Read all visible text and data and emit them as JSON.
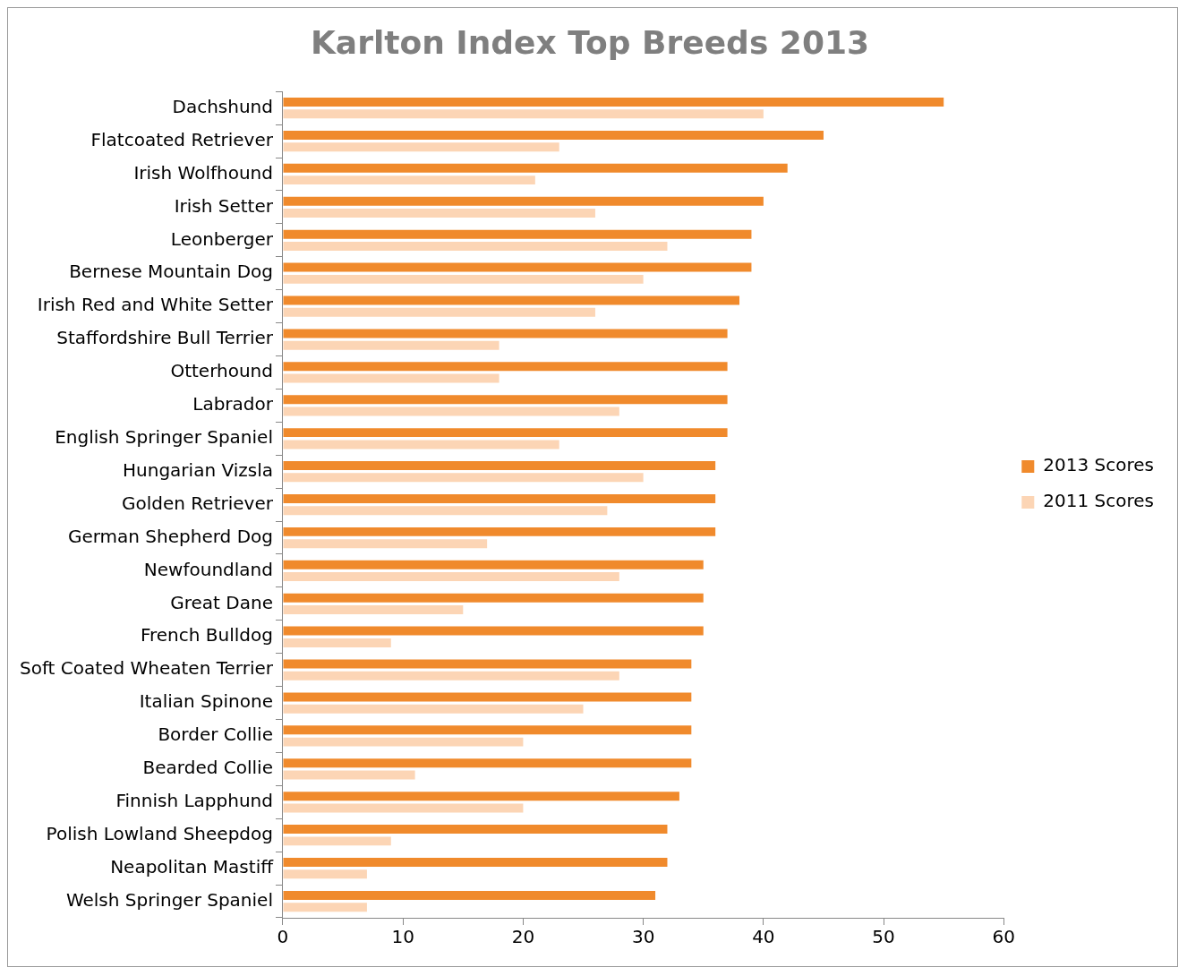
{
  "chart_data": {
    "type": "bar",
    "orientation": "horizontal",
    "title": "Karlton Index Top Breeds 2013",
    "categories": [
      "Dachshund",
      "Flatcoated Retriever",
      "Irish Wolfhound",
      "Irish Setter",
      "Leonberger",
      "Bernese Mountain Dog",
      "Irish Red and White Setter",
      "Staffordshire Bull Terrier",
      "Otterhound",
      "Labrador",
      "English Springer Spaniel",
      "Hungarian Vizsla",
      "Golden Retriever",
      "German Shepherd Dog",
      "Newfoundland",
      "Great Dane",
      "French Bulldog",
      "Soft Coated Wheaten Terrier",
      "Italian Spinone",
      "Border Collie",
      "Bearded Collie",
      "Finnish Lapphund",
      "Polish Lowland Sheepdog",
      "Neapolitan Mastiff",
      "Welsh Springer Spaniel"
    ],
    "series": [
      {
        "name": "2013 Scores",
        "color": "#f08a2c",
        "values": [
          55,
          45,
          42,
          40,
          39,
          39,
          38,
          37,
          37,
          37,
          37,
          36,
          36,
          36,
          35,
          35,
          35,
          34,
          34,
          34,
          34,
          33,
          32,
          32,
          31
        ]
      },
      {
        "name": "2011 Scores",
        "color": "#fcd5b5",
        "values": [
          40,
          23,
          21,
          26,
          32,
          30,
          26,
          18,
          18,
          28,
          23,
          30,
          27,
          17,
          28,
          15,
          9,
          28,
          25,
          20,
          11,
          20,
          9,
          7,
          7
        ]
      }
    ],
    "xlim": [
      0,
      60
    ],
    "xticks": [
      0,
      10,
      20,
      30,
      40,
      50,
      60
    ],
    "grid": false,
    "legend": "right"
  }
}
